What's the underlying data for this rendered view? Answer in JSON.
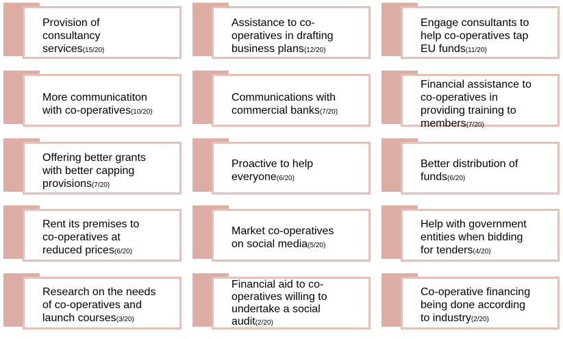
{
  "cards": [
    {
      "text": "Provision of\nconsultancy\nservices",
      "count": "(15/20)"
    },
    {
      "text": "Assistance to co-\noperatives in drafting\nbusiness plans",
      "count": "(12/20)"
    },
    {
      "text": "Engage consultants to\nhelp co-operatives tap\nEU funds",
      "count": "(11/20)"
    },
    {
      "text": "More communicatiton\nwith co-operatives",
      "count": "(10/20)"
    },
    {
      "text": "Communications  with\ncommercial banks",
      "count": "(7/20)"
    },
    {
      "text": "Financial assistance to\nco-operatives in\nproviding training to\nmembers",
      "count": "(7/20)"
    },
    {
      "text": "Offering better grants\nwith better capping\nprovisions",
      "count": "(7/20)"
    },
    {
      "text": "Proactive to help\neveryone",
      "count": "(6/20)"
    },
    {
      "text": "Better distribution  of\nfunds",
      "count": "(6/20)"
    },
    {
      "text": "Rent its premises to\nco-operatives at\nreduced prices",
      "count": "(6/20)"
    },
    {
      "text": "Market co-operatives\non social media",
      "count": "(5/20)"
    },
    {
      "text": "Help with government\nentities when bidding\nfor tenders",
      "count": "(4/20)"
    },
    {
      "text": "Research on the needs\nof co-operatives and\nlaunch courses",
      "count": "(3/20)"
    },
    {
      "text": "Financial aid to co-\noperatives willing to\nundertake a social\naudit",
      "count": "(2/20)"
    },
    {
      "text": "Co-operative  financing\nbeing done according\nto industry",
      "count": "(2/20)"
    }
  ],
  "colors": {
    "accent": "#dcaea5",
    "border": "#e4c0b9"
  }
}
